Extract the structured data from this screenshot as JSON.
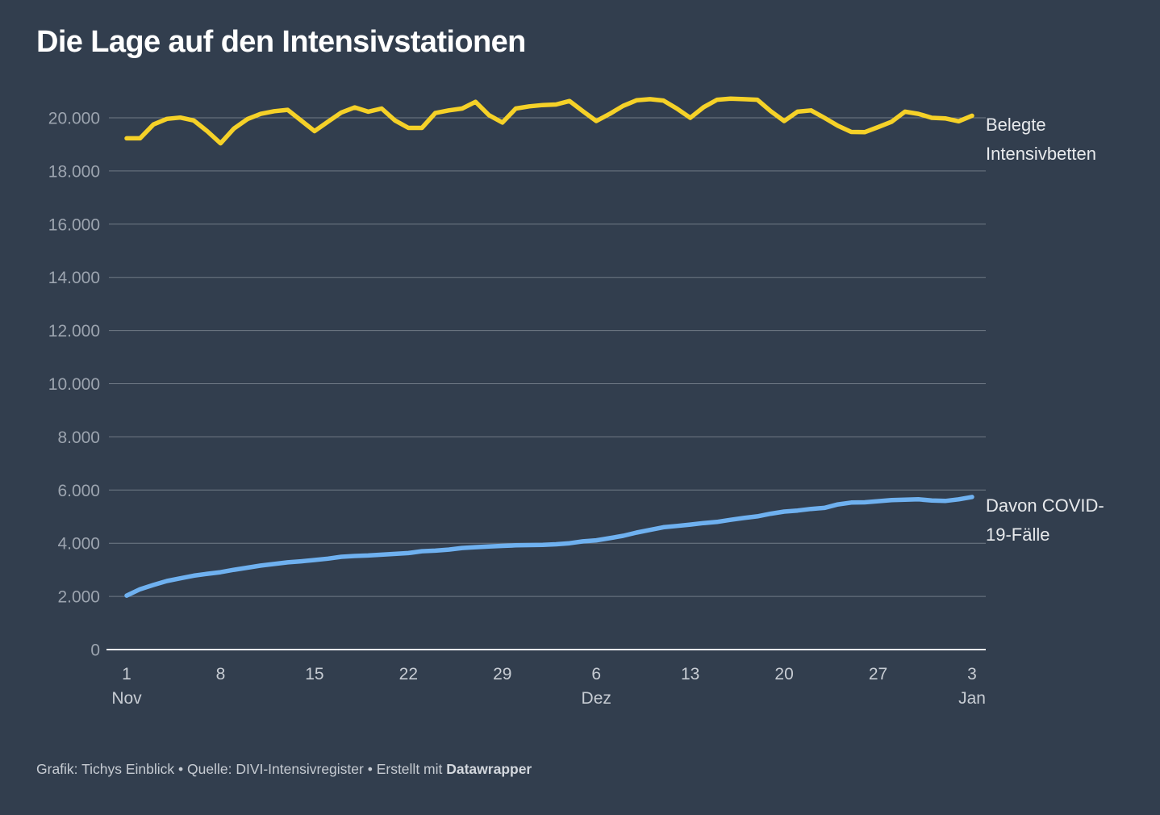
{
  "title": "Die Lage auf den Intensivstationen",
  "footer": {
    "prefix": "Grafik: Tichys Einblick • Quelle: DIVI-Intensivregister • Erstellt mit ",
    "brand": "Datawrapper"
  },
  "colors": {
    "background": "#323E4E",
    "title": "#FFFFFF",
    "gridline": "#707A86",
    "axis_line": "#E9EBED",
    "y_tick_label": "#9CA4AF",
    "x_tick_label": "#C7CCD3",
    "series_label": "#E7E9EC",
    "footer_text": "#C6CBD2",
    "series_yellow": "#F5D128",
    "series_blue": "#6FB1F0"
  },
  "chart_data": {
    "type": "line",
    "title": "Die Lage auf den Intensivstationen",
    "xlabel": "",
    "ylabel": "",
    "ylim": [
      0,
      21000
    ],
    "grid": "horizontal",
    "legend_position": "right-of-line-labels",
    "x_description": "Daily values from 1 Nov to 3 Jan (64 days)",
    "y_ticks": [
      {
        "value": 0,
        "label": "0"
      },
      {
        "value": 2000,
        "label": "2.000"
      },
      {
        "value": 4000,
        "label": "4.000"
      },
      {
        "value": 6000,
        "label": "6.000"
      },
      {
        "value": 8000,
        "label": "8.000"
      },
      {
        "value": 10000,
        "label": "10.000"
      },
      {
        "value": 12000,
        "label": "12.000"
      },
      {
        "value": 14000,
        "label": "14.000"
      },
      {
        "value": 16000,
        "label": "16.000"
      },
      {
        "value": 18000,
        "label": "18.000"
      },
      {
        "value": 20000,
        "label": "20.000"
      }
    ],
    "x_ticks": [
      {
        "day": 1,
        "label": "1",
        "sub": "Nov"
      },
      {
        "day": 8,
        "label": "8",
        "sub": ""
      },
      {
        "day": 15,
        "label": "15",
        "sub": ""
      },
      {
        "day": 22,
        "label": "22",
        "sub": ""
      },
      {
        "day": 29,
        "label": "29",
        "sub": ""
      },
      {
        "day": 36,
        "label": "6",
        "sub": "Dez"
      },
      {
        "day": 43,
        "label": "13",
        "sub": ""
      },
      {
        "day": 50,
        "label": "20",
        "sub": ""
      },
      {
        "day": 57,
        "label": "27",
        "sub": ""
      },
      {
        "day": 64,
        "label": "3",
        "sub": "Jan"
      }
    ],
    "series": [
      {
        "name": "Belegte Intensivbetten",
        "label_lines": [
          "Belegte",
          "Intensivbetten"
        ],
        "color": "#F5D128",
        "values": [
          19230,
          19230,
          19750,
          19960,
          20010,
          19900,
          19500,
          19040,
          19600,
          19950,
          20150,
          20250,
          20300,
          19900,
          19500,
          19850,
          20200,
          20390,
          20230,
          20350,
          19900,
          19620,
          19620,
          20180,
          20280,
          20350,
          20600,
          20100,
          19820,
          20350,
          20430,
          20480,
          20500,
          20630,
          20250,
          19880,
          20150,
          20450,
          20660,
          20700,
          20650,
          20350,
          20000,
          20400,
          20680,
          20720,
          20700,
          20680,
          20250,
          19880,
          20230,
          20280,
          20000,
          19700,
          19470,
          19460,
          19650,
          19850,
          20230,
          20150,
          20000,
          19980,
          19870,
          20080
        ]
      },
      {
        "name": "Davon COVID-19-Fälle",
        "label_lines": [
          "Davon COVID-",
          "19-Fälle"
        ],
        "color": "#6FB1F0",
        "values": [
          2030,
          2270,
          2430,
          2580,
          2680,
          2780,
          2850,
          2910,
          3000,
          3080,
          3160,
          3220,
          3280,
          3320,
          3370,
          3420,
          3490,
          3520,
          3540,
          3570,
          3600,
          3630,
          3700,
          3720,
          3760,
          3820,
          3850,
          3880,
          3900,
          3920,
          3930,
          3940,
          3960,
          4000,
          4070,
          4110,
          4190,
          4280,
          4400,
          4500,
          4600,
          4650,
          4700,
          4760,
          4800,
          4880,
          4950,
          5010,
          5110,
          5190,
          5230,
          5290,
          5330,
          5460,
          5530,
          5540,
          5580,
          5620,
          5640,
          5650,
          5610,
          5590,
          5650,
          5740
        ]
      }
    ]
  }
}
